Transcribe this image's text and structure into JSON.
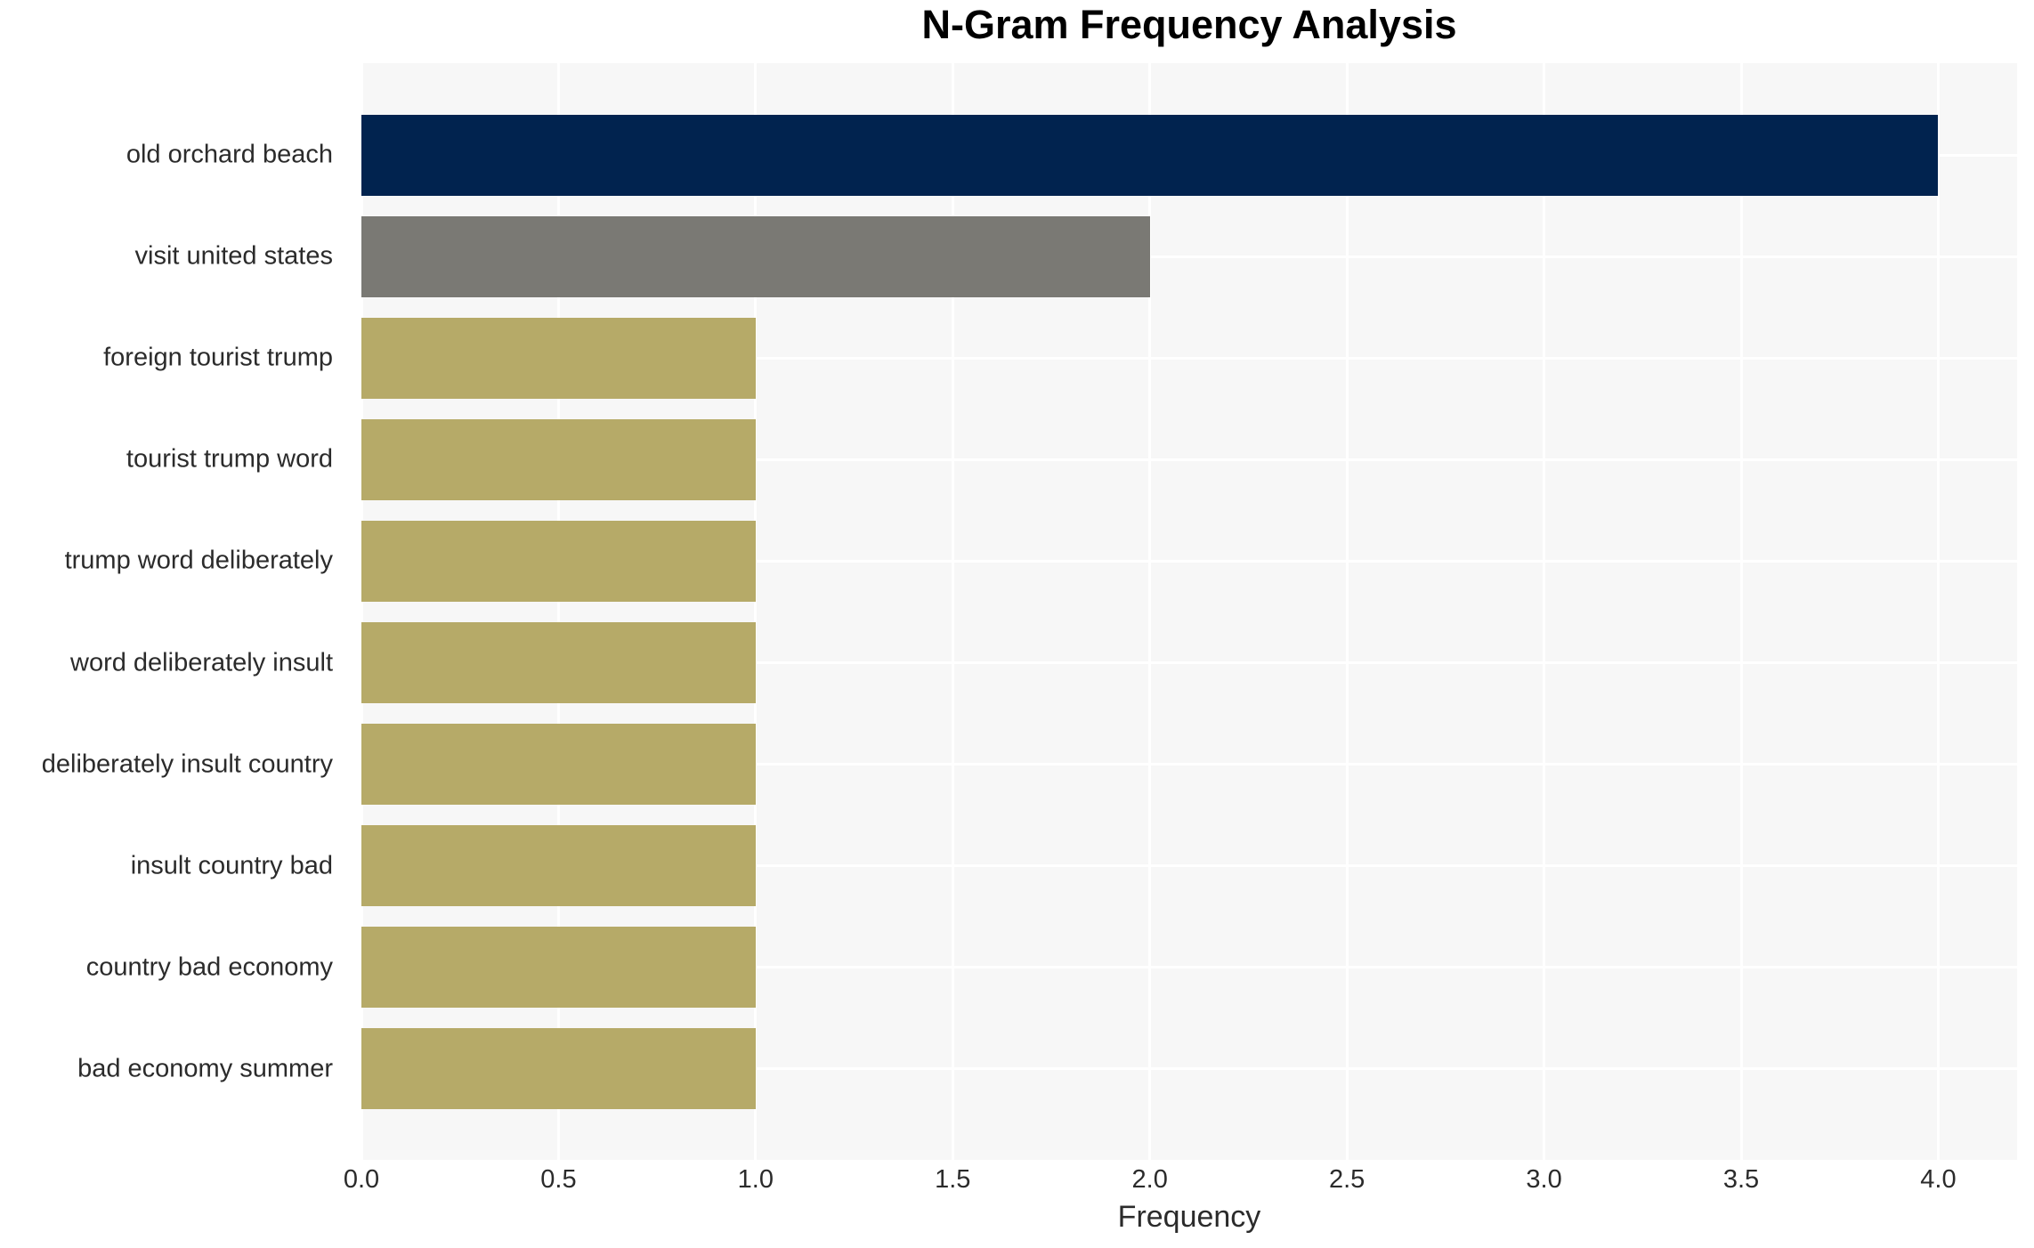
{
  "chart_data": {
    "type": "bar",
    "orientation": "horizontal",
    "title": "N-Gram Frequency Analysis",
    "xlabel": "Frequency",
    "ylabel": "",
    "categories": [
      "old orchard beach",
      "visit united states",
      "foreign tourist trump",
      "tourist trump word",
      "trump word deliberately",
      "word deliberately insult",
      "deliberately insult country",
      "insult country bad",
      "country bad economy",
      "bad economy summer"
    ],
    "values": [
      4,
      2,
      1,
      1,
      1,
      1,
      1,
      1,
      1,
      1
    ],
    "bar_colors": [
      "#01234f",
      "#7a7974",
      "#b6aa68",
      "#b6aa68",
      "#b6aa68",
      "#b6aa68",
      "#b6aa68",
      "#b6aa68",
      "#b6aa68",
      "#b6aa68"
    ],
    "xlim": [
      0,
      4.2
    ],
    "xticks": [
      0,
      0.5,
      1,
      1.5,
      2,
      2.5,
      3,
      3.5,
      4
    ],
    "xtick_labels": [
      "0.0",
      "0.5",
      "1.0",
      "1.5",
      "2.0",
      "2.5",
      "3.0",
      "3.5",
      "4.0"
    ],
    "grid": true,
    "grid_axes": "both",
    "legend_position": "none",
    "colors": {
      "figure_bg": "#ffffff",
      "plot_bg": "#f7f7f7",
      "grid": "#ffffff",
      "tick_text": "#2b2b2b",
      "title_text": "#000000"
    }
  }
}
